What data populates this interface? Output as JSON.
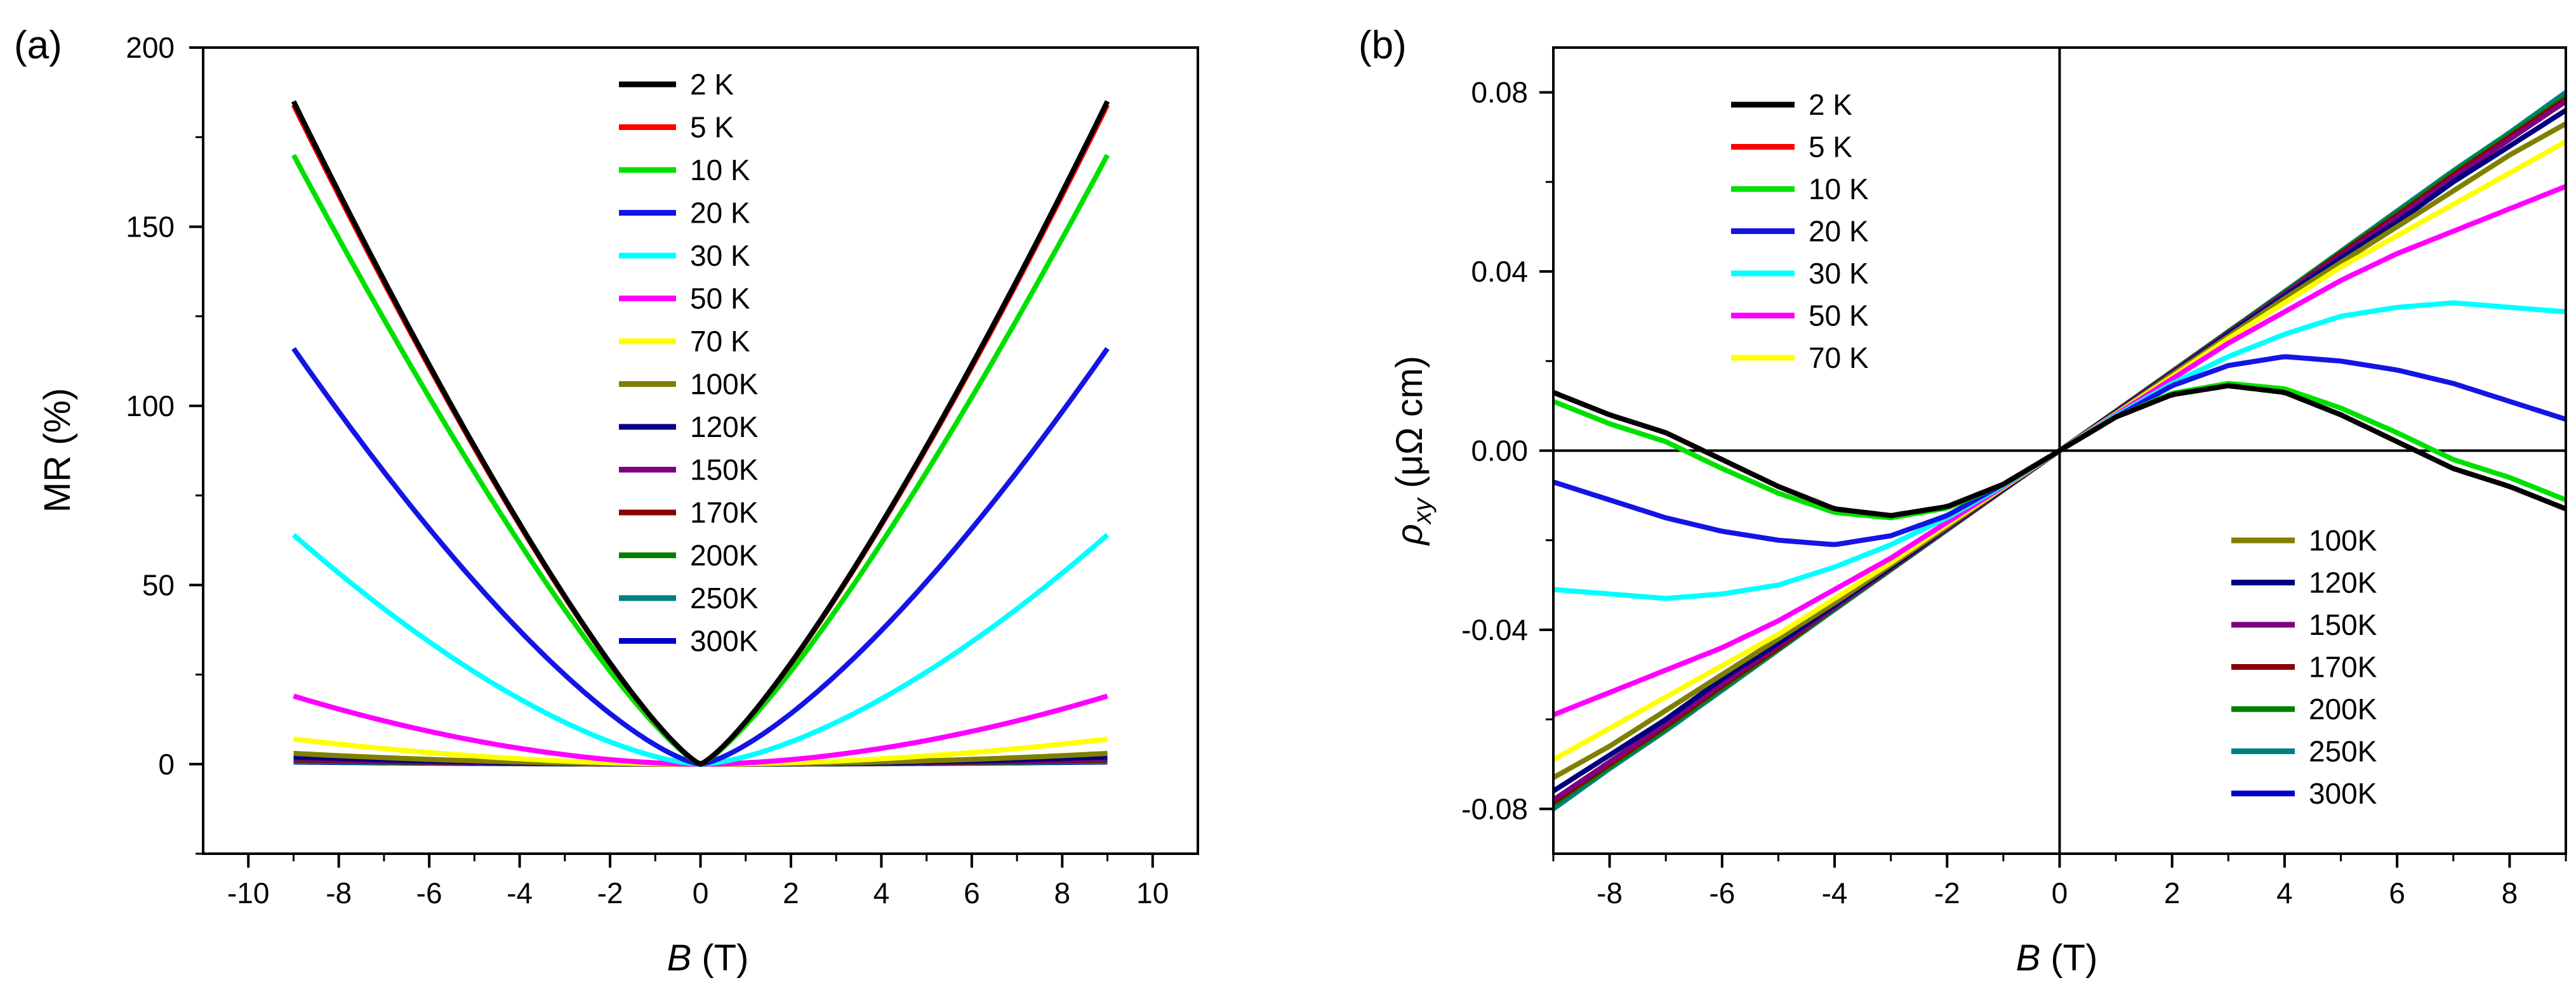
{
  "colors": {
    "2 K": "#000000",
    "5 K": "#ff0000",
    "10 K": "#00e000",
    "20 K": "#1414e6",
    "30 K": "#00ffff",
    "50 K": "#ff00ff",
    "70 K": "#ffff00",
    "100K": "#808000",
    "120K": "#00007f",
    "150K": "#800080",
    "170K": "#8b0000",
    "200K": "#008000",
    "250K": "#008080",
    "300K": "#0000c8"
  },
  "chart_data": [
    {
      "panel": "(a)",
      "type": "line",
      "xlabel_italic": "B",
      "xlabel_rest": " (T)",
      "ylabel": "MR (%)",
      "xlim": [
        -11,
        11
      ],
      "ylim": [
        -25,
        200
      ],
      "xticks": [
        -10,
        -8,
        -6,
        -4,
        -2,
        0,
        2,
        4,
        6,
        8,
        10
      ],
      "yticks": [
        0,
        50,
        100,
        150,
        200
      ],
      "legend_position": "top-center",
      "legend": [
        "2  K",
        "5  K",
        "10 K",
        "20 K",
        "30 K",
        "50 K",
        "70 K",
        "100K",
        "120K",
        "150K",
        "170K",
        "200K",
        "250K",
        "300K"
      ],
      "series": [
        {
          "name": "2  K",
          "color_key": "2 K",
          "mr_at_9T": 185,
          "shape": 1.25
        },
        {
          "name": "5  K",
          "color_key": "5 K",
          "mr_at_9T": 184,
          "shape": 1.25
        },
        {
          "name": "10 K",
          "color_key": "10 K",
          "mr_at_9T": 170,
          "shape": 1.25
        },
        {
          "name": "20 K",
          "color_key": "20 K",
          "mr_at_9T": 116,
          "shape": 1.4
        },
        {
          "name": "30 K",
          "color_key": "30 K",
          "mr_at_9T": 64,
          "shape": 1.55
        },
        {
          "name": "50 K",
          "color_key": "50 K",
          "mr_at_9T": 19,
          "shape": 1.8
        },
        {
          "name": "70 K",
          "color_key": "70 K",
          "mr_at_9T": 7,
          "shape": 1.9
        },
        {
          "name": "100K",
          "color_key": "100K",
          "mr_at_9T": 3,
          "shape": 2
        },
        {
          "name": "120K",
          "color_key": "120K",
          "mr_at_9T": 2,
          "shape": 2
        },
        {
          "name": "150K",
          "color_key": "150K",
          "mr_at_9T": 1.5,
          "shape": 2
        },
        {
          "name": "170K",
          "color_key": "170K",
          "mr_at_9T": 1.2,
          "shape": 2
        },
        {
          "name": "200K",
          "color_key": "200K",
          "mr_at_9T": 1,
          "shape": 2
        },
        {
          "name": "250K",
          "color_key": "250K",
          "mr_at_9T": 0.8,
          "shape": 2
        },
        {
          "name": "300K",
          "color_key": "300K",
          "mr_at_9T": 0.6,
          "shape": 2
        }
      ]
    },
    {
      "panel": "(b)",
      "type": "line",
      "xlabel_italic": "B",
      "xlabel_rest": " (T)",
      "ylabel_symbol": "ρ",
      "ylabel_sub": "xy",
      "ylabel_rest": " (μΩ cm)",
      "xlim": [
        -9,
        9
      ],
      "ylim": [
        -0.09,
        0.09
      ],
      "xticks": [
        -8,
        -6,
        -4,
        -2,
        0,
        2,
        4,
        6,
        8
      ],
      "yticks": [
        "-0.08",
        "-0.04",
        "0.00",
        "0.04",
        "0.08"
      ],
      "zero_lines": true,
      "legend_positions": [
        "top-left",
        "bottom-right"
      ],
      "legend_top": [
        "2  K",
        "5  K",
        "10 K",
        "20 K",
        "30 K",
        "50 K",
        "70 K"
      ],
      "legend_bottom": [
        "100K",
        "120K",
        "150K",
        "170K",
        "200K",
        "250K",
        "300K"
      ],
      "series": [
        {
          "name": "2  K",
          "color_key": "2 K",
          "points": [
            [
              0,
              0
            ],
            [
              1,
              0.0075
            ],
            [
              2,
              0.0125
            ],
            [
              3,
              0.0145
            ],
            [
              4,
              0.013
            ],
            [
              5,
              0.008
            ],
            [
              6,
              0.002
            ],
            [
              7,
              -0.004
            ],
            [
              8,
              -0.008
            ],
            [
              9,
              -0.013
            ]
          ]
        },
        {
          "name": "5  K",
          "color_key": "5 K",
          "points": [
            [
              0,
              0
            ],
            [
              1,
              0.0075
            ],
            [
              2,
              0.0125
            ],
            [
              3,
              0.0145
            ],
            [
              4,
              0.013
            ],
            [
              5,
              0.008
            ],
            [
              6,
              0.002
            ],
            [
              7,
              -0.004
            ],
            [
              8,
              -0.008
            ],
            [
              9,
              -0.013
            ]
          ]
        },
        {
          "name": "10 K",
          "color_key": "10 K",
          "points": [
            [
              0,
              0
            ],
            [
              1,
              0.0075
            ],
            [
              2,
              0.0128
            ],
            [
              3,
              0.015
            ],
            [
              4,
              0.0138
            ],
            [
              5,
              0.0095
            ],
            [
              6,
              0.004
            ],
            [
              7,
              -0.002
            ],
            [
              8,
              -0.006
            ],
            [
              9,
              -0.011
            ]
          ]
        },
        {
          "name": "20 K",
          "color_key": "20 K",
          "points": [
            [
              0,
              0
            ],
            [
              1,
              0.0075
            ],
            [
              2,
              0.0145
            ],
            [
              3,
              0.019
            ],
            [
              4,
              0.021
            ],
            [
              5,
              0.02
            ],
            [
              6,
              0.018
            ],
            [
              7,
              0.015
            ],
            [
              8,
              0.011
            ],
            [
              9,
              0.007
            ]
          ]
        },
        {
          "name": "30 K",
          "color_key": "30 K",
          "points": [
            [
              0,
              0
            ],
            [
              1,
              0.0078
            ],
            [
              2,
              0.015
            ],
            [
              3,
              0.021
            ],
            [
              4,
              0.026
            ],
            [
              5,
              0.03
            ],
            [
              6,
              0.032
            ],
            [
              7,
              0.033
            ],
            [
              8,
              0.032
            ],
            [
              9,
              0.031
            ]
          ]
        },
        {
          "name": "50 K",
          "color_key": "50 K",
          "points": [
            [
              0,
              0
            ],
            [
              1,
              0.008
            ],
            [
              2,
              0.016
            ],
            [
              3,
              0.024
            ],
            [
              4,
              0.031
            ],
            [
              5,
              0.038
            ],
            [
              6,
              0.044
            ],
            [
              7,
              0.049
            ],
            [
              8,
              0.054
            ],
            [
              9,
              0.059
            ]
          ]
        },
        {
          "name": "70 K",
          "color_key": "70 K",
          "points": [
            [
              0,
              0
            ],
            [
              1,
              0.0082
            ],
            [
              2,
              0.0165
            ],
            [
              3,
              0.025
            ],
            [
              4,
              0.033
            ],
            [
              5,
              0.041
            ],
            [
              6,
              0.048
            ],
            [
              7,
              0.055
            ],
            [
              8,
              0.062
            ],
            [
              9,
              0.069
            ]
          ]
        },
        {
          "name": "100K",
          "color_key": "100K",
          "points": [
            [
              0,
              0
            ],
            [
              1,
              0.0083
            ],
            [
              2,
              0.017
            ],
            [
              3,
              0.0255
            ],
            [
              4,
              0.034
            ],
            [
              5,
              0.042
            ],
            [
              6,
              0.05
            ],
            [
              7,
              0.058
            ],
            [
              8,
              0.066
            ],
            [
              9,
              0.073
            ]
          ]
        },
        {
          "name": "120K",
          "color_key": "120K",
          "points": [
            [
              0,
              0
            ],
            [
              1,
              0.0085
            ],
            [
              2,
              0.0172
            ],
            [
              3,
              0.026
            ],
            [
              4,
              0.0345
            ],
            [
              5,
              0.043
            ],
            [
              6,
              0.051
            ],
            [
              7,
              0.06
            ],
            [
              8,
              0.068
            ],
            [
              9,
              0.076
            ]
          ]
        },
        {
          "name": "150K",
          "color_key": "150K",
          "points": [
            [
              0,
              0
            ],
            [
              1,
              0.0086
            ],
            [
              2,
              0.0174
            ],
            [
              3,
              0.0262
            ],
            [
              4,
              0.035
            ],
            [
              5,
              0.0435
            ],
            [
              6,
              0.052
            ],
            [
              7,
              0.061
            ],
            [
              8,
              0.0695
            ],
            [
              9,
              0.078
            ]
          ]
        },
        {
          "name": "170K",
          "color_key": "170K",
          "points": [
            [
              0,
              0
            ],
            [
              1,
              0.0087
            ],
            [
              2,
              0.0175
            ],
            [
              3,
              0.0263
            ],
            [
              4,
              0.035
            ],
            [
              5,
              0.044
            ],
            [
              6,
              0.0525
            ],
            [
              7,
              0.0615
            ],
            [
              8,
              0.07
            ],
            [
              9,
              0.0785
            ]
          ]
        },
        {
          "name": "200K",
          "color_key": "200K",
          "points": [
            [
              0,
              0
            ],
            [
              1,
              0.0088
            ],
            [
              2,
              0.0176
            ],
            [
              3,
              0.0265
            ],
            [
              4,
              0.0353
            ],
            [
              5,
              0.0443
            ],
            [
              6,
              0.053
            ],
            [
              7,
              0.062
            ],
            [
              8,
              0.0705
            ],
            [
              9,
              0.079
            ]
          ]
        },
        {
          "name": "250K",
          "color_key": "250K",
          "points": [
            [
              0,
              0
            ],
            [
              1,
              0.0088
            ],
            [
              2,
              0.0177
            ],
            [
              3,
              0.0266
            ],
            [
              4,
              0.0355
            ],
            [
              5,
              0.0445
            ],
            [
              6,
              0.0535
            ],
            [
              7,
              0.0625
            ],
            [
              8,
              0.071
            ],
            [
              9,
              0.08
            ]
          ]
        },
        {
          "name": "300K",
          "color_key": "300K",
          "points": [
            [
              0,
              0
            ],
            [
              1,
              0.0087
            ],
            [
              2,
              0.0175
            ],
            [
              3,
              0.0264
            ],
            [
              4,
              0.0352
            ],
            [
              5,
              0.0442
            ],
            [
              6,
              0.053
            ],
            [
              7,
              0.062
            ],
            [
              8,
              0.0705
            ],
            [
              9,
              0.0795
            ]
          ]
        }
      ]
    }
  ]
}
